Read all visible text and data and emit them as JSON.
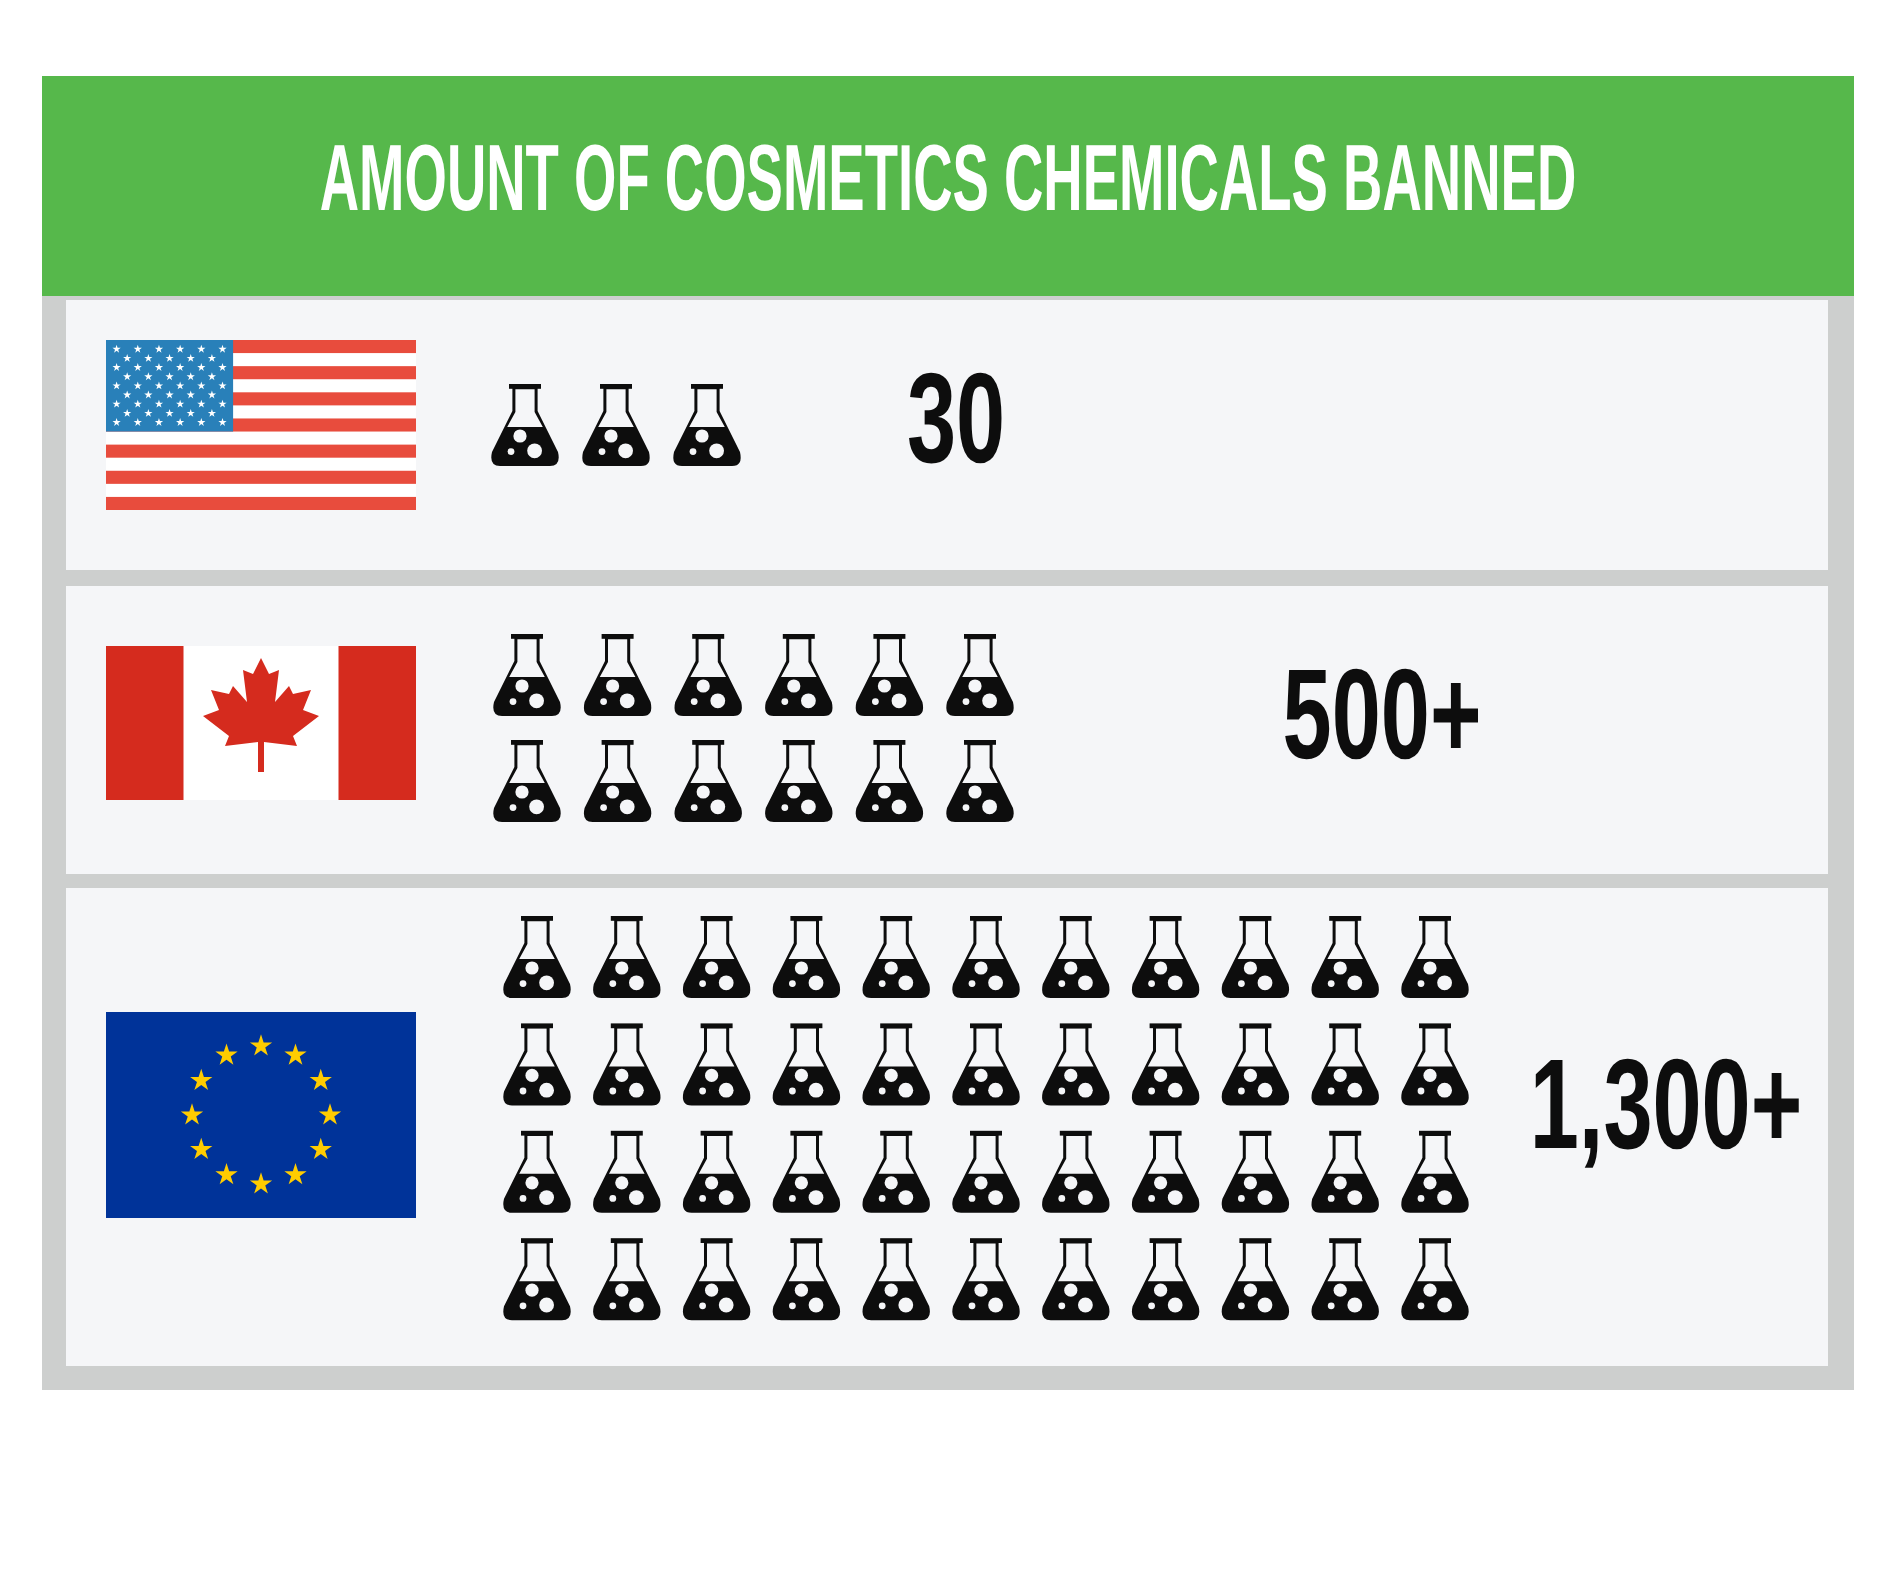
{
  "chart_data": {
    "type": "other",
    "title": "AMOUNT OF COSMETICS CHEMICALS BANNED",
    "categories": [
      null,
      null,
      null
    ],
    "values": [
      30,
      500,
      1300
    ],
    "value_labels": [
      "30",
      "500+",
      "1,300+"
    ]
  }
}
